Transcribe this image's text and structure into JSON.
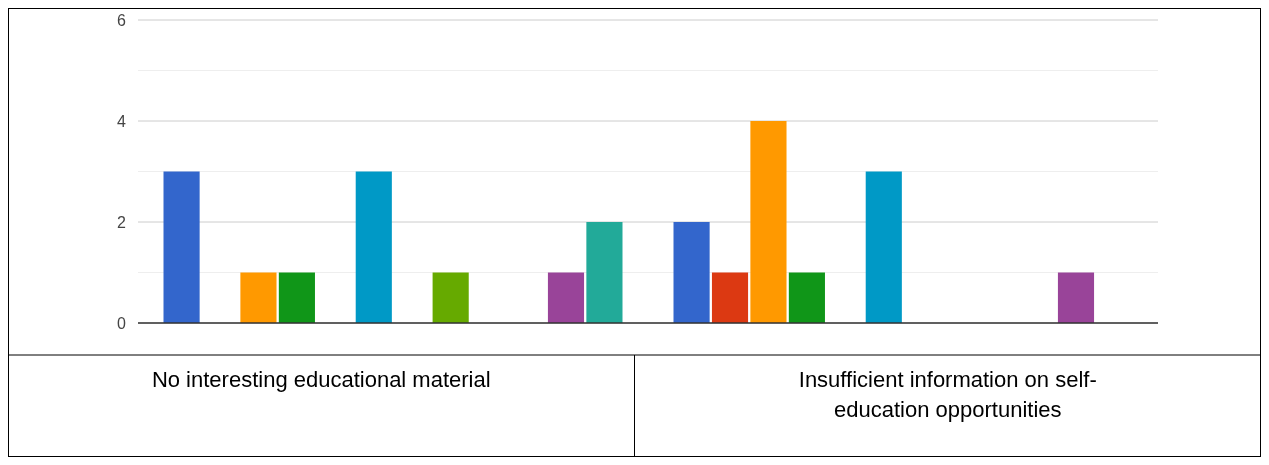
{
  "chart_data": {
    "type": "bar",
    "categories": [
      "No interesting educational material",
      "Insufficient information on self-education opportunities"
    ],
    "series": [
      {
        "color": "#3366cc",
        "values": [
          3,
          2
        ]
      },
      {
        "color": "#dc3912",
        "values": [
          0,
          1
        ]
      },
      {
        "color": "#ff9900",
        "values": [
          1,
          4
        ]
      },
      {
        "color": "#109618",
        "values": [
          1,
          1
        ]
      },
      {
        "color": "#990099",
        "values": [
          0,
          0
        ]
      },
      {
        "color": "#0099c6",
        "values": [
          3,
          3
        ]
      },
      {
        "color": "#dd4477",
        "values": [
          0,
          0
        ]
      },
      {
        "color": "#66aa00",
        "values": [
          1,
          0
        ]
      },
      {
        "color": "#b82e2e",
        "values": [
          0,
          0
        ]
      },
      {
        "color": "#316395",
        "values": [
          0,
          0
        ]
      },
      {
        "color": "#994499",
        "values": [
          1,
          1
        ]
      },
      {
        "color": "#22aa99",
        "values": [
          2,
          0
        ]
      }
    ],
    "ylim": [
      0,
      6
    ],
    "yticks": [
      0,
      {
        "value": 1,
        "label": null
      },
      2,
      {
        "value": 3,
        "label": null
      },
      4,
      {
        "value": 5,
        "label": null
      },
      6
    ],
    "grid": true
  }
}
